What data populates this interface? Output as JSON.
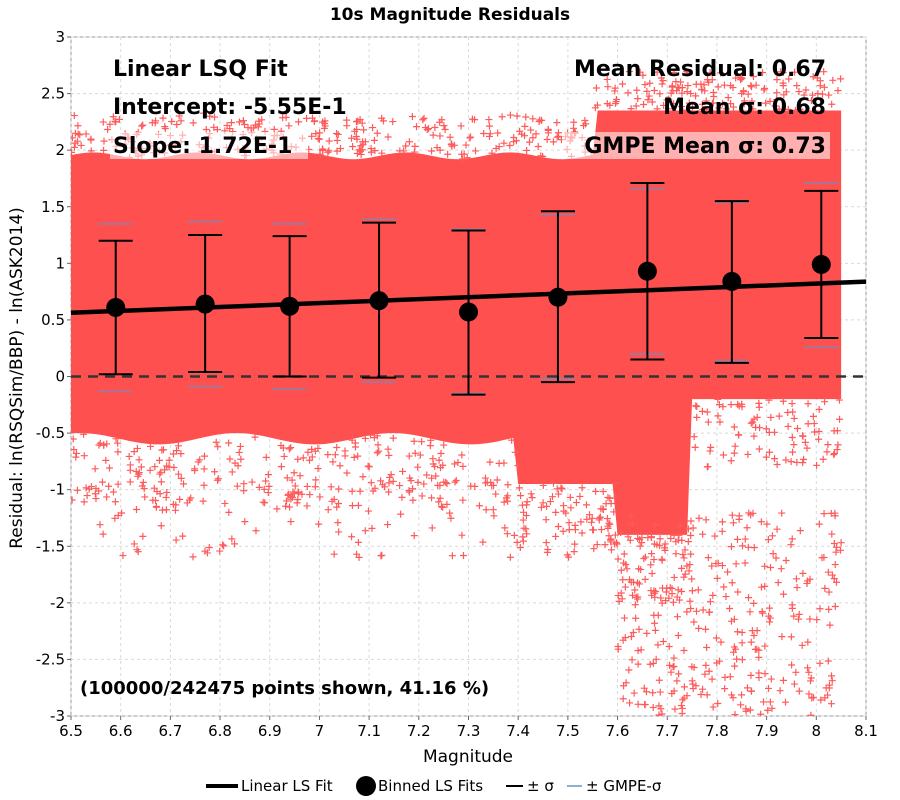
{
  "chart_data": {
    "type": "scatter",
    "title": "10s Magnitude Residuals",
    "xlabel": "Magnitude",
    "ylabel": "Residual: ln(RSQSim/BBP) - ln(ASK2014)",
    "xlim": [
      6.5,
      8.1
    ],
    "ylim": [
      -3,
      3
    ],
    "x_ticks": [
      "6.5",
      "6.6",
      "6.7",
      "6.8",
      "6.9",
      "7",
      "7.1",
      "7.2",
      "7.3",
      "7.4",
      "7.5",
      "7.6",
      "7.7",
      "7.8",
      "7.9",
      "8",
      "8.1"
    ],
    "y_ticks": [
      "-3",
      "-2.5",
      "-2",
      "-1.5",
      "-1",
      "-0.5",
      "0",
      "0.5",
      "1",
      "1.5",
      "2",
      "2.5",
      "3"
    ],
    "grid": true,
    "zero_line": {
      "y": 0,
      "style": "dashed"
    },
    "fit_line": {
      "name": "Linear LS Fit",
      "intercept": -0.555,
      "slope": 0.172
    },
    "binned_fits": {
      "name": "Binned LS Fits",
      "points": [
        {
          "x": 6.59,
          "mean": 0.61,
          "sigma_lo": 0.02,
          "sigma_hi": 1.2,
          "gmpe_lo": -0.13,
          "gmpe_hi": 1.35
        },
        {
          "x": 6.77,
          "mean": 0.64,
          "sigma_lo": 0.04,
          "sigma_hi": 1.25,
          "gmpe_lo": -0.09,
          "gmpe_hi": 1.37
        },
        {
          "x": 6.94,
          "mean": 0.62,
          "sigma_lo": 0.0,
          "sigma_hi": 1.24,
          "gmpe_lo": -0.11,
          "gmpe_hi": 1.35
        },
        {
          "x": 7.12,
          "mean": 0.67,
          "sigma_lo": -0.01,
          "sigma_hi": 1.36,
          "gmpe_lo": -0.05,
          "gmpe_hi": 1.39
        },
        {
          "x": 7.3,
          "mean": 0.57,
          "sigma_lo": -0.16,
          "sigma_hi": 1.29,
          "gmpe_lo": -0.15,
          "gmpe_hi": 1.3
        },
        {
          "x": 7.48,
          "mean": 0.7,
          "sigma_lo": -0.05,
          "sigma_hi": 1.46,
          "gmpe_lo": -0.02,
          "gmpe_hi": 1.43
        },
        {
          "x": 7.66,
          "mean": 0.93,
          "sigma_lo": 0.15,
          "sigma_hi": 1.71,
          "gmpe_lo": 0.2,
          "gmpe_hi": 1.66
        },
        {
          "x": 7.83,
          "mean": 0.84,
          "sigma_lo": 0.12,
          "sigma_hi": 1.55,
          "gmpe_lo": 0.14,
          "gmpe_hi": 1.54
        },
        {
          "x": 8.01,
          "mean": 0.99,
          "sigma_lo": 0.34,
          "sigma_hi": 1.64,
          "gmpe_lo": 0.26,
          "gmpe_hi": 1.71
        }
      ]
    },
    "scatter": {
      "count_shown": 100000,
      "count_total": 242475,
      "color": "#ff5a5a",
      "marker": "+"
    },
    "annotations": {
      "fit_title": "Linear LSQ Fit",
      "intercept": "Intercept: -5.55E-1",
      "slope": "Slope: 1.72E-1",
      "mean_residual": "Mean Residual: 0.67",
      "mean_sigma": "Mean σ: 0.68",
      "gmpe_mean_sigma": "GMPE Mean σ: 0.73",
      "points_shown": "(100000/242475 points shown, 41.16 %)"
    },
    "legend": {
      "placement": "bottom",
      "items": [
        {
          "label": "Linear LS Fit",
          "symbol": "thick-line"
        },
        {
          "label": "Binned LS Fits",
          "symbol": "circle"
        },
        {
          "label": "± σ",
          "symbol": "line"
        },
        {
          "label": "± GMPE-σ",
          "symbol": "light-line"
        }
      ]
    },
    "colors": {
      "scatter": "#ff5a5a",
      "scatter_core": "#ff5050",
      "fit": "#000000",
      "sigma": "#000000",
      "gmpe_sigma": "#7a88b8",
      "grid": "#d9d9d9"
    }
  }
}
